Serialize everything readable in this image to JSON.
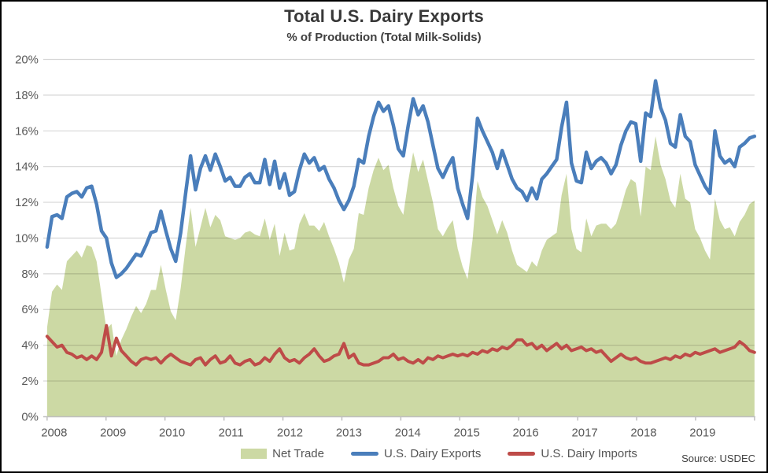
{
  "page": {
    "title": "Total U.S. Dairy Exports",
    "subtitle": "% of Production (Total Milk-Solids)",
    "source": "Source: USDEC"
  },
  "chart_data": {
    "type": "combo",
    "title": "Total U.S. Dairy Exports",
    "subtitle": "% of Production (Total Milk-Solids)",
    "x_interval": "monthly",
    "x_start": "2008-01",
    "x_end": "2019-12",
    "year_labels": [
      "2008",
      "2009",
      "2010",
      "2011",
      "2012",
      "2013",
      "2014",
      "2015",
      "2016",
      "2017",
      "2018",
      "2019"
    ],
    "ylim": [
      0,
      20
    ],
    "ytick_step": 2,
    "ytick_format": "percent",
    "grid": "horizontal",
    "legend_position": "bottom",
    "source": "Source: USDEC",
    "colors": {
      "grid": "#d9d9d9",
      "axis": "#bfbfbf",
      "text": "#595959"
    },
    "series": [
      {
        "name": "Net Trade",
        "type": "area",
        "color": "#ccd9a4",
        "values": [
          5.0,
          7.0,
          7.4,
          7.1,
          8.7,
          9.0,
          9.3,
          8.9,
          9.6,
          9.5,
          8.7,
          6.8,
          4.9,
          5.2,
          3.4,
          4.3,
          4.9,
          5.6,
          6.2,
          5.8,
          6.3,
          7.1,
          7.1,
          8.5,
          7.1,
          5.9,
          5.4,
          7.2,
          9.5,
          11.7,
          9.5,
          10.6,
          11.7,
          10.6,
          11.3,
          11.0,
          10.1,
          10.0,
          9.9,
          10.0,
          10.3,
          10.4,
          10.2,
          10.1,
          11.1,
          9.9,
          10.8,
          9.0,
          10.3,
          9.3,
          9.4,
          10.8,
          11.4,
          10.7,
          10.7,
          10.4,
          10.9,
          10.1,
          9.4,
          8.6,
          7.5,
          8.8,
          9.4,
          11.4,
          11.3,
          12.8,
          13.8,
          14.5,
          13.8,
          14.1,
          12.8,
          11.8,
          11.3,
          13.2,
          14.8,
          13.7,
          14.4,
          13.2,
          12.0,
          10.5,
          10.1,
          10.6,
          11.0,
          9.4,
          8.4,
          7.7,
          9.9,
          13.2,
          12.3,
          11.8,
          11.0,
          10.2,
          11.0,
          10.3,
          9.3,
          8.5,
          8.3,
          8.1,
          8.7,
          8.4,
          9.3,
          9.9,
          10.1,
          10.3,
          12.4,
          13.6,
          10.5,
          9.4,
          9.2,
          11.1,
          10.1,
          10.7,
          10.8,
          10.8,
          10.5,
          10.8,
          11.7,
          12.7,
          13.3,
          13.1,
          11.2,
          14.0,
          13.8,
          15.7,
          14.1,
          13.3,
          12.1,
          11.7,
          13.6,
          12.2,
          12.0,
          10.5,
          10.0,
          9.3,
          8.8,
          12.2,
          11.0,
          10.5,
          10.6,
          10.1,
          10.9,
          11.3,
          11.9,
          12.1
        ]
      },
      {
        "name": "U.S. Dairy Exports",
        "type": "line",
        "color": "#4a7ebb",
        "values": [
          9.5,
          11.2,
          11.3,
          11.1,
          12.3,
          12.5,
          12.6,
          12.3,
          12.8,
          12.9,
          11.9,
          10.4,
          10.0,
          8.6,
          7.8,
          8.0,
          8.3,
          8.7,
          9.1,
          9.0,
          9.6,
          10.3,
          10.4,
          11.5,
          10.4,
          9.4,
          8.7,
          10.3,
          12.5,
          14.6,
          12.7,
          13.9,
          14.6,
          13.8,
          14.7,
          14.0,
          13.2,
          13.4,
          12.9,
          12.9,
          13.4,
          13.6,
          13.1,
          13.1,
          14.4,
          13.0,
          14.3,
          12.8,
          13.6,
          12.4,
          12.6,
          13.8,
          14.7,
          14.2,
          14.5,
          13.8,
          14.0,
          13.3,
          12.8,
          12.1,
          11.6,
          12.1,
          12.9,
          14.4,
          14.2,
          15.7,
          16.8,
          17.6,
          17.1,
          17.4,
          16.3,
          15.0,
          14.6,
          16.3,
          17.8,
          16.9,
          17.4,
          16.5,
          15.2,
          13.9,
          13.4,
          14.0,
          14.5,
          12.8,
          11.9,
          11.1,
          13.5,
          16.7,
          16.0,
          15.4,
          14.8,
          13.9,
          14.9,
          14.1,
          13.3,
          12.8,
          12.6,
          12.1,
          12.8,
          12.2,
          13.3,
          13.6,
          14.0,
          14.4,
          16.2,
          17.6,
          14.2,
          13.2,
          13.1,
          14.8,
          13.9,
          14.3,
          14.5,
          14.2,
          13.6,
          14.1,
          15.2,
          16.0,
          16.5,
          16.4,
          14.3,
          17.0,
          16.8,
          18.8,
          17.3,
          16.6,
          15.3,
          15.1,
          16.9,
          15.7,
          15.4,
          14.1,
          13.5,
          12.9,
          12.5,
          16.0,
          14.6,
          14.2,
          14.4,
          14.0,
          15.1,
          15.3,
          15.6,
          15.7
        ]
      },
      {
        "name": "U.S. Dairy Imports",
        "type": "line",
        "color": "#be4b48",
        "values": [
          4.5,
          4.2,
          3.9,
          4.0,
          3.6,
          3.5,
          3.3,
          3.4,
          3.2,
          3.4,
          3.2,
          3.6,
          5.1,
          3.4,
          4.4,
          3.7,
          3.4,
          3.1,
          2.9,
          3.2,
          3.3,
          3.2,
          3.3,
          3.0,
          3.3,
          3.5,
          3.3,
          3.1,
          3.0,
          2.9,
          3.2,
          3.3,
          2.9,
          3.2,
          3.4,
          3.0,
          3.1,
          3.4,
          3.0,
          2.9,
          3.1,
          3.2,
          2.9,
          3.0,
          3.3,
          3.1,
          3.5,
          3.8,
          3.3,
          3.1,
          3.2,
          3.0,
          3.3,
          3.5,
          3.8,
          3.4,
          3.1,
          3.2,
          3.4,
          3.5,
          4.1,
          3.3,
          3.5,
          3.0,
          2.9,
          2.9,
          3.0,
          3.1,
          3.3,
          3.3,
          3.5,
          3.2,
          3.3,
          3.1,
          3.0,
          3.2,
          3.0,
          3.3,
          3.2,
          3.4,
          3.3,
          3.4,
          3.5,
          3.4,
          3.5,
          3.4,
          3.6,
          3.5,
          3.7,
          3.6,
          3.8,
          3.7,
          3.9,
          3.8,
          4.0,
          4.3,
          4.3,
          4.0,
          4.1,
          3.8,
          4.0,
          3.7,
          3.9,
          4.1,
          3.8,
          4.0,
          3.7,
          3.8,
          3.9,
          3.7,
          3.8,
          3.6,
          3.7,
          3.4,
          3.1,
          3.3,
          3.5,
          3.3,
          3.2,
          3.3,
          3.1,
          3.0,
          3.0,
          3.1,
          3.2,
          3.3,
          3.2,
          3.4,
          3.3,
          3.5,
          3.4,
          3.6,
          3.5,
          3.6,
          3.7,
          3.8,
          3.6,
          3.7,
          3.8,
          3.9,
          4.2,
          4.0,
          3.7,
          3.6
        ]
      }
    ]
  }
}
